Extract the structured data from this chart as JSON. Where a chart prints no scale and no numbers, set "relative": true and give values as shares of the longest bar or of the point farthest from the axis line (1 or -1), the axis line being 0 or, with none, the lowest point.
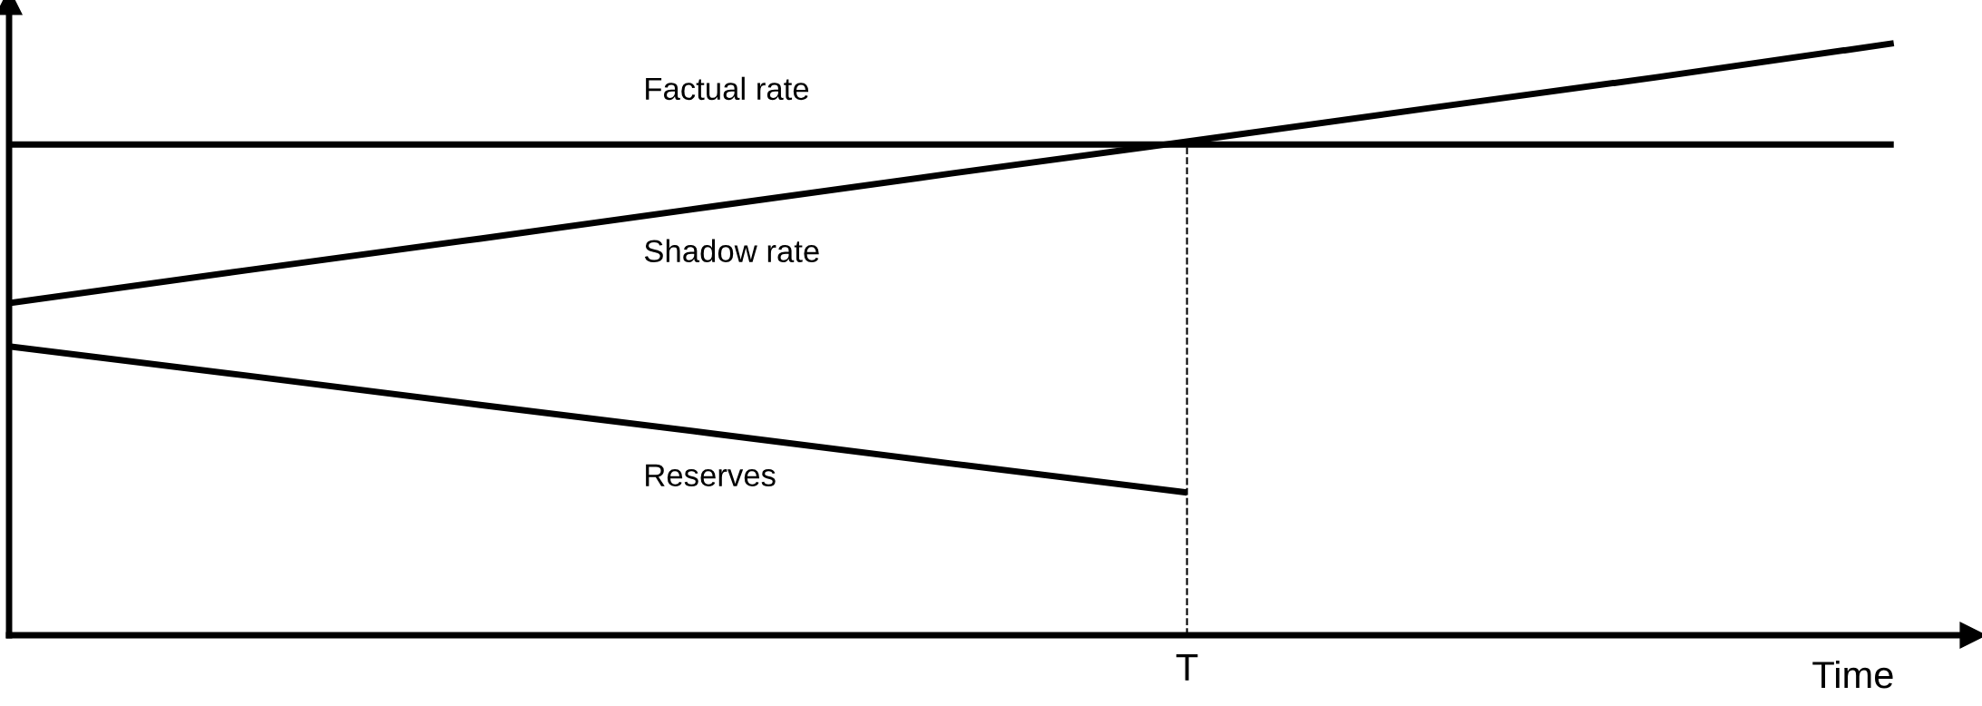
{
  "chart_data": {
    "type": "line",
    "relative": true,
    "xlabel": "Time",
    "categories": [
      null,
      null,
      null,
      null,
      null,
      null,
      null,
      null,
      null
    ],
    "series": [
      {
        "name": "Factual rate",
        "color": "#000000",
        "values": [
          0.829,
          0.829,
          0.829,
          0.829,
          0.829,
          0.829,
          0.829,
          0.829,
          0.829
        ]
      },
      {
        "name": "Shadow rate",
        "color": "#000000",
        "values": [
          0.561,
          0.616,
          0.67,
          0.725,
          0.78,
          0.834,
          0.889,
          0.943,
          1
        ]
      },
      {
        "name": "Reserves",
        "color": "#000000",
        "values": [
          0.488,
          0.439,
          0.389,
          0.34,
          0.29,
          0.241,
          null,
          null,
          null
        ]
      }
    ],
    "annotations": [
      "T"
    ],
    "marker": "none",
    "line_style": "solid",
    "legend": false
  }
}
